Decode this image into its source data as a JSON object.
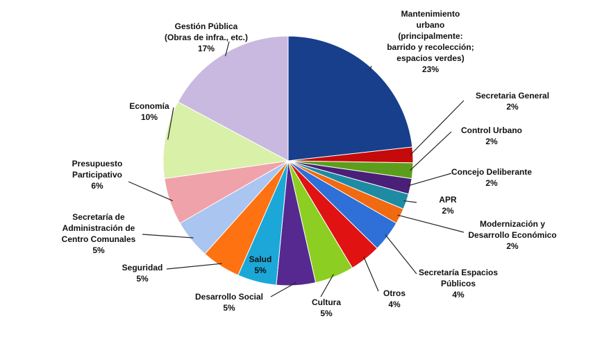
{
  "chart_data": {
    "type": "pie",
    "categories": [
      "Mantenimiento\nurbano\n(principalmente:\nbarrido y recolección;\nespacios verdes)",
      "Secretaria General",
      "Control Urbano",
      "Concejo Deliberante",
      "APR",
      "Modernización y\nDesarrollo Económico",
      "Secretaría Espacios\nPúblicos",
      "Otros",
      "Cultura",
      "Desarrollo Social",
      "Salud",
      "Seguridad",
      "Secretaría de\nAdministración de\nCentro Comunales",
      "Presupuesto\nParticipativo",
      "Economía",
      "Gestión Pública\n(Obras de infra., etc.)"
    ],
    "values": [
      23,
      2,
      2,
      2,
      2,
      2,
      4,
      4,
      5,
      5,
      5,
      5,
      5,
      6,
      10,
      17
    ],
    "value_labels": [
      "23%",
      "2%",
      "2%",
      "2%",
      "2%",
      "2%",
      "4%",
      "4%",
      "5%",
      "5%",
      "5%",
      "5%",
      "5%",
      "6%",
      "10%",
      "17%"
    ],
    "colors": [
      "#173f8c",
      "#c40a0a",
      "#5c9e1c",
      "#4a1f78",
      "#1f8ba2",
      "#f06a12",
      "#2e6fd8",
      "#e01212",
      "#8ccf22",
      "#55298f",
      "#1ba8d8",
      "#ff7212",
      "#a9c5f0",
      "#f0a2aa",
      "#d8f0a8",
      "#c9b9e0"
    ]
  }
}
